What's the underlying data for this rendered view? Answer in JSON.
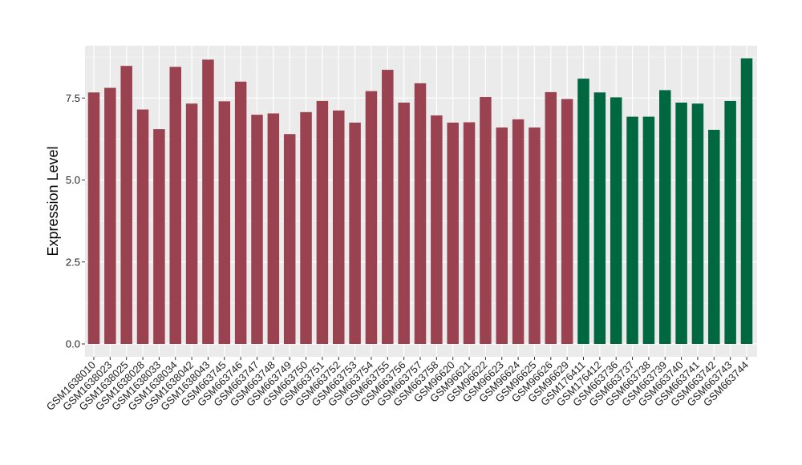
{
  "chart_data": {
    "type": "bar",
    "title": "",
    "xlabel": "",
    "ylabel": "Expression Level",
    "ylim": [
      0,
      8.9
    ],
    "yticks": [
      0.0,
      2.5,
      5.0,
      7.5
    ],
    "ytick_labels": [
      "0.0",
      "2.5",
      "5.0",
      "7.5"
    ],
    "grid": true,
    "legend": "none",
    "colors": {
      "group1": "#9b4250",
      "group2": "#006841",
      "panel": "#ebebeb",
      "grid": "#ffffff"
    },
    "categories": [
      "GSM1638010",
      "GSM1638023",
      "GSM1638025",
      "GSM1638028",
      "GSM1638033",
      "GSM1638034",
      "GSM1638042",
      "GSM1638043",
      "GSM663745",
      "GSM663746",
      "GSM663747",
      "GSM663748",
      "GSM663749",
      "GSM663750",
      "GSM663751",
      "GSM663752",
      "GSM663753",
      "GSM663754",
      "GSM663755",
      "GSM663756",
      "GSM663757",
      "GSM663758",
      "GSM96620",
      "GSM96621",
      "GSM96622",
      "GSM96623",
      "GSM96624",
      "GSM96625",
      "GSM96626",
      "GSM96629",
      "GSM176411",
      "GSM176412",
      "GSM663736",
      "GSM663737",
      "GSM663738",
      "GSM663739",
      "GSM663740",
      "GSM663741",
      "GSM663742",
      "GSM663743",
      "GSM663744"
    ],
    "values": [
      7.67,
      7.81,
      8.48,
      7.15,
      6.55,
      8.45,
      7.33,
      8.67,
      7.4,
      8.0,
      6.99,
      7.03,
      6.4,
      7.07,
      7.41,
      7.12,
      6.75,
      7.71,
      8.36,
      7.36,
      7.95,
      6.97,
      6.75,
      6.76,
      7.53,
      6.6,
      6.85,
      6.6,
      7.68,
      7.47,
      8.09,
      7.67,
      7.52,
      6.93,
      6.93,
      7.74,
      7.36,
      7.33,
      6.53,
      7.41,
      8.71
    ],
    "groups": [
      1,
      1,
      1,
      1,
      1,
      1,
      1,
      1,
      1,
      1,
      1,
      1,
      1,
      1,
      1,
      1,
      1,
      1,
      1,
      1,
      1,
      1,
      1,
      1,
      1,
      1,
      1,
      1,
      1,
      1,
      2,
      2,
      2,
      2,
      2,
      2,
      2,
      2,
      2,
      2,
      2
    ]
  }
}
